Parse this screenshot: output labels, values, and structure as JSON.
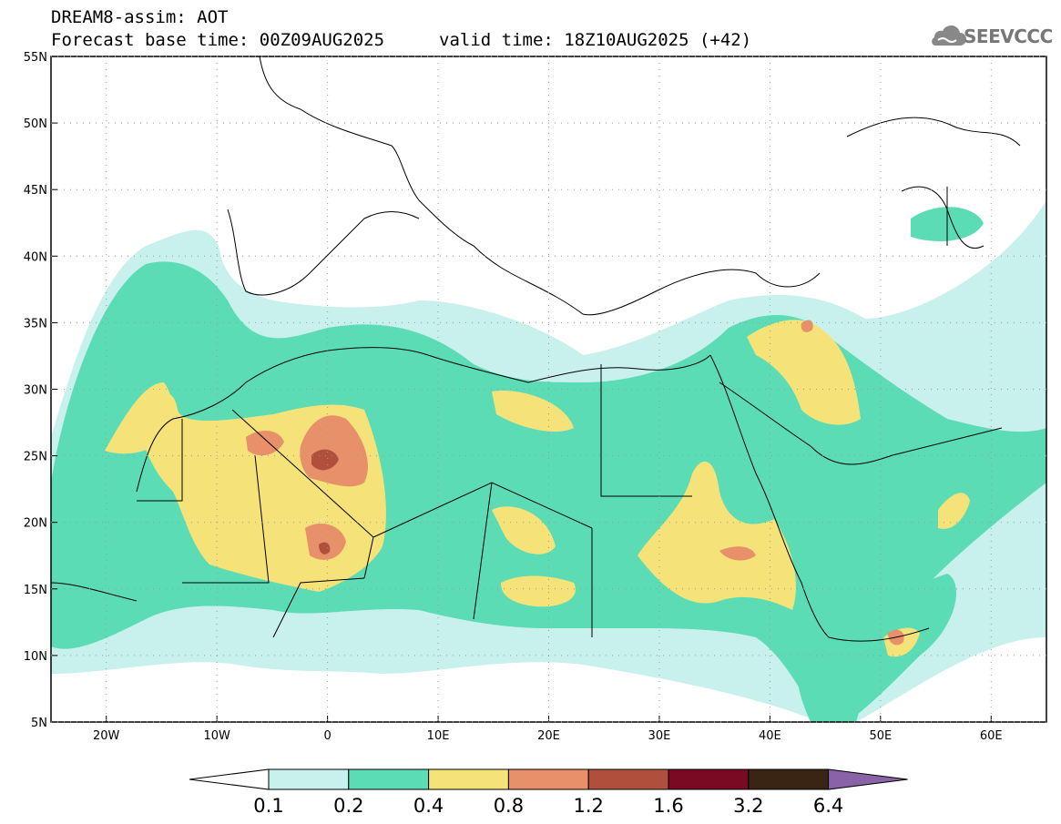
{
  "header": {
    "line1": "DREAM8-assim: AOT",
    "line2": "Forecast base time: 00Z09AUG2025",
    "valid": "valid time: 18Z10AUG2025 (+42)"
  },
  "logo": {
    "text": "SEEVCCC",
    "icon": "cloud-icon"
  },
  "map": {
    "lon_ticks": [
      "20W",
      "10W",
      "0",
      "10E",
      "20E",
      "30E",
      "40E",
      "50E",
      "60E"
    ],
    "lat_ticks": [
      "55N",
      "50N",
      "45N",
      "40N",
      "35N",
      "30N",
      "25N",
      "20N",
      "15N",
      "10N",
      "5N"
    ],
    "extent": {
      "lon": [
        -25,
        65
      ],
      "lat": [
        5,
        55
      ]
    }
  },
  "colorbar": {
    "labels": [
      "0.1",
      "0.2",
      "0.4",
      "0.8",
      "1.2",
      "1.6",
      "3.2",
      "6.4"
    ],
    "colors": [
      "#ffffff",
      "#c8f0ec",
      "#5bdcb4",
      "#f5e37a",
      "#e8906a",
      "#b0503c",
      "#7a0a24",
      "#3a2414",
      "#8a62a8"
    ]
  },
  "colors": {
    "c02": "#c8f0ec",
    "c04": "#5bdcb4",
    "c08": "#f5e37a",
    "c12": "#e8906a",
    "c16": "#b0503c"
  }
}
